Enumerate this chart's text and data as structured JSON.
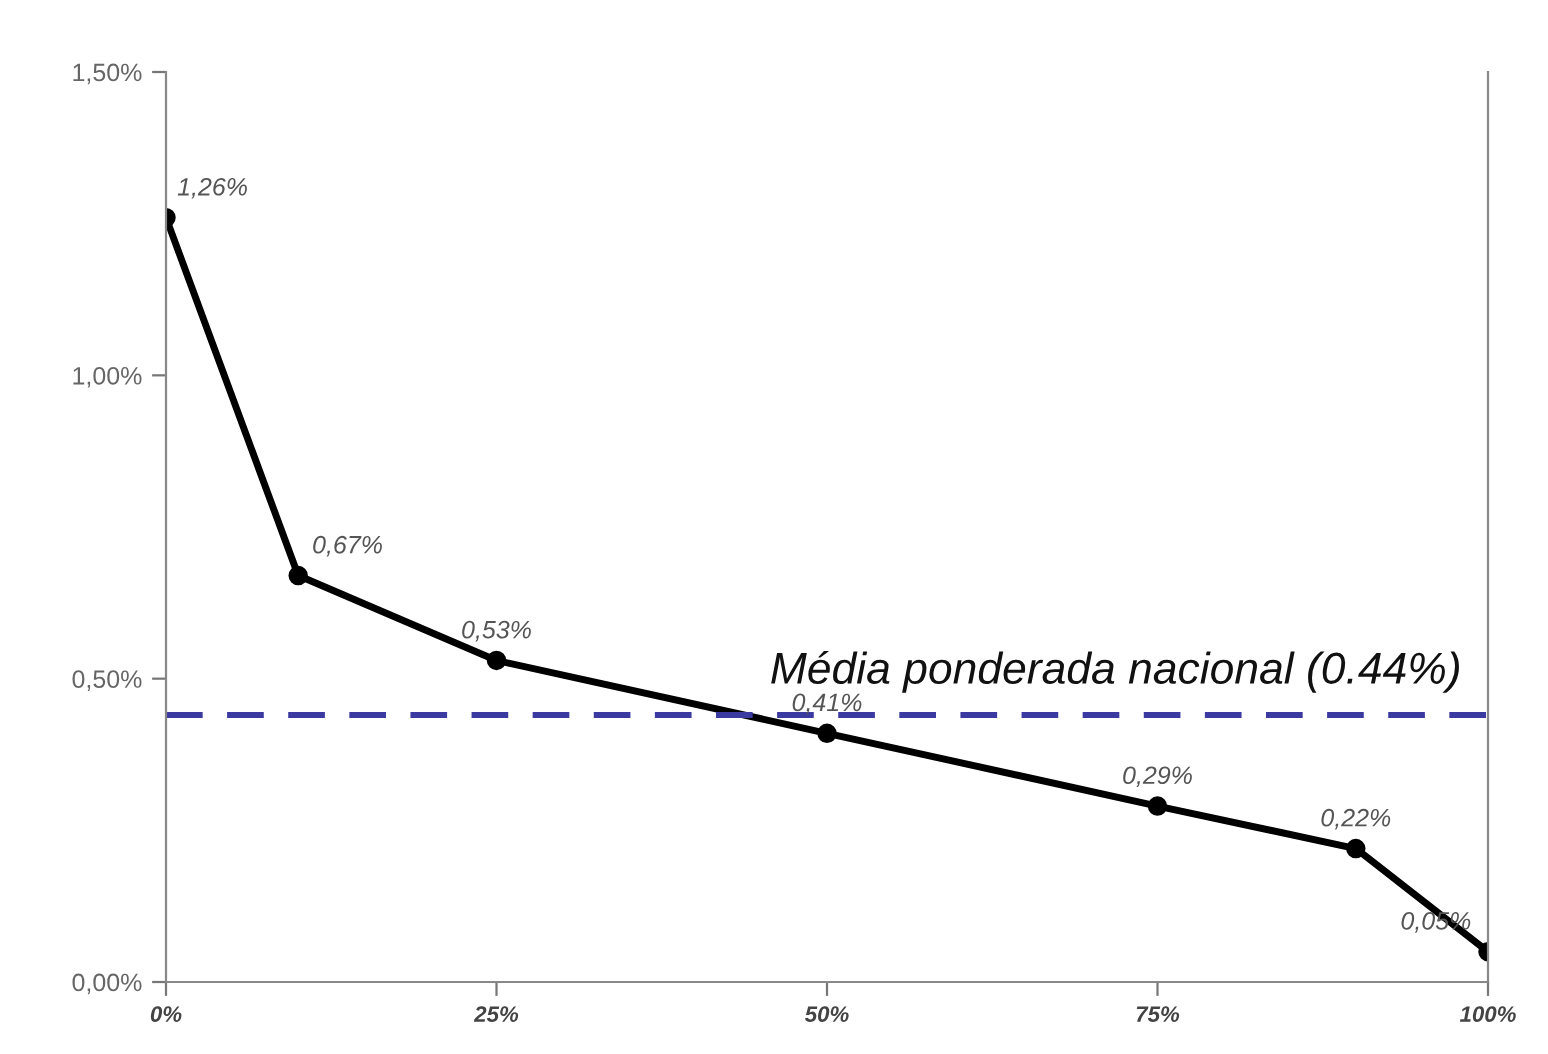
{
  "chart_data": {
    "type": "line",
    "x": [
      0,
      10,
      25,
      50,
      75,
      90,
      100
    ],
    "series": [
      {
        "color": "#000000",
        "values": [
          1.26,
          0.67,
          0.53,
          0.41,
          0.29,
          0.22,
          0.05
        ],
        "value_labels": [
          "1,26%",
          "0,67%",
          "0,53%",
          "0,41%",
          "0,29%",
          "0,22%",
          "0,05%"
        ]
      }
    ],
    "marker": "circle",
    "line_style": "solid",
    "grid": false,
    "legend": false,
    "xlim": [
      0,
      100
    ],
    "xticks": [
      {
        "value": 0,
        "label": "0%"
      },
      {
        "value": 25,
        "label": "25%"
      },
      {
        "value": 50,
        "label": "50%"
      },
      {
        "value": 75,
        "label": "75%"
      },
      {
        "value": 100,
        "label": "100%"
      }
    ],
    "ylim": [
      0,
      1.5
    ],
    "yticks": [
      {
        "value": 0,
        "label": "0,00%"
      },
      {
        "value": 0.5,
        "label": "0,50%"
      },
      {
        "value": 1.0,
        "label": "1,00%"
      },
      {
        "value": 1.5,
        "label": "1,50%"
      }
    ],
    "ref_lines": [
      {
        "axis": "y",
        "value": 0.44,
        "label": "Média ponderada nacional (0.44%)",
        "color": "#3a3aa0",
        "line_style": "dashed"
      }
    ]
  }
}
